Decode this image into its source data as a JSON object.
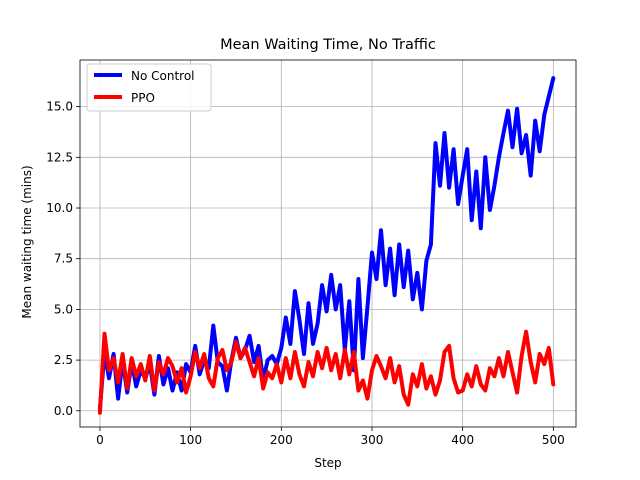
{
  "chart_data": {
    "type": "line",
    "title": "Mean Waiting Time, No Traffic",
    "xlabel": "Step",
    "ylabel": "Mean waiting time (mins)",
    "xlim": [
      -22,
      525
    ],
    "ylim": [
      -0.8,
      17.3
    ],
    "xticks": [
      0,
      100,
      200,
      300,
      400,
      500
    ],
    "yticks": [
      0.0,
      2.5,
      5.0,
      7.5,
      10.0,
      12.5,
      15.0
    ],
    "ytick_labels": [
      "0.0",
      "2.5",
      "5.0",
      "7.5",
      "10.0",
      "12.5",
      "15.0"
    ],
    "grid": true,
    "legend_position": "top-left",
    "series": [
      {
        "name": "No Control",
        "color": "#0000ff",
        "x": [
          0,
          5,
          10,
          15,
          20,
          25,
          30,
          35,
          40,
          45,
          50,
          55,
          60,
          65,
          70,
          75,
          80,
          85,
          90,
          95,
          100,
          105,
          110,
          115,
          120,
          125,
          130,
          135,
          140,
          145,
          150,
          155,
          160,
          165,
          170,
          175,
          180,
          185,
          190,
          195,
          200,
          205,
          210,
          215,
          220,
          225,
          230,
          235,
          240,
          245,
          250,
          255,
          260,
          265,
          270,
          275,
          280,
          285,
          290,
          295,
          300,
          305,
          310,
          315,
          320,
          325,
          330,
          335,
          340,
          345,
          350,
          355,
          360,
          365,
          370,
          375,
          380,
          385,
          390,
          395,
          400,
          405,
          410,
          415,
          420,
          425,
          430,
          435,
          440,
          445,
          450,
          455,
          460,
          465,
          470,
          475,
          480,
          485,
          490,
          495,
          500
        ],
        "values": [
          0.1,
          2.9,
          1.6,
          2.8,
          0.6,
          2.5,
          0.9,
          2.4,
          1.2,
          2.0,
          1.6,
          2.3,
          0.8,
          2.7,
          1.3,
          2.1,
          1.0,
          1.9,
          1.0,
          2.3,
          1.9,
          3.2,
          1.8,
          2.5,
          2.1,
          4.2,
          2.4,
          2.2,
          1.0,
          2.5,
          3.6,
          2.6,
          3.0,
          3.7,
          2.4,
          3.2,
          1.5,
          2.5,
          2.7,
          2.3,
          3.1,
          4.6,
          3.3,
          5.9,
          4.5,
          2.8,
          5.3,
          3.3,
          4.3,
          6.2,
          4.9,
          6.7,
          5.0,
          6.2,
          3.0,
          5.4,
          2.0,
          6.5,
          2.6,
          5.1,
          7.8,
          6.5,
          8.9,
          6.2,
          8.0,
          5.7,
          8.2,
          6.1,
          7.9,
          5.5,
          6.8,
          5.0,
          7.4,
          8.2,
          13.2,
          11.1,
          13.7,
          11.0,
          12.9,
          10.2,
          11.6,
          12.9,
          9.4,
          11.8,
          9.0,
          12.5,
          9.9,
          11.1,
          12.5,
          13.7,
          14.8,
          13.0,
          14.9,
          12.7,
          13.6,
          11.6,
          14.3,
          12.8,
          14.6,
          15.5,
          16.4
        ]
      },
      {
        "name": "PPO",
        "color": "#ff0000",
        "x": [
          0,
          5,
          10,
          15,
          20,
          25,
          30,
          35,
          40,
          45,
          50,
          55,
          60,
          65,
          70,
          75,
          80,
          85,
          90,
          95,
          100,
          105,
          110,
          115,
          120,
          125,
          130,
          135,
          140,
          145,
          150,
          155,
          160,
          165,
          170,
          175,
          180,
          185,
          190,
          195,
          200,
          205,
          210,
          215,
          220,
          225,
          230,
          235,
          240,
          245,
          250,
          255,
          260,
          265,
          270,
          275,
          280,
          285,
          290,
          295,
          300,
          305,
          310,
          315,
          320,
          325,
          330,
          335,
          340,
          345,
          350,
          355,
          360,
          365,
          370,
          375,
          380,
          385,
          390,
          395,
          400,
          405,
          410,
          415,
          420,
          425,
          430,
          435,
          440,
          445,
          450,
          455,
          460,
          465,
          470,
          475,
          480,
          485,
          490,
          495,
          500
        ],
        "values": [
          -0.1,
          3.8,
          2.0,
          2.6,
          1.4,
          2.8,
          1.1,
          2.6,
          1.7,
          2.3,
          1.5,
          2.7,
          1.0,
          2.4,
          1.8,
          2.6,
          2.2,
          1.4,
          2.1,
          0.9,
          1.7,
          2.9,
          2.1,
          2.8,
          1.6,
          1.2,
          2.6,
          3.0,
          2.0,
          2.4,
          3.4,
          2.6,
          3.1,
          2.4,
          1.7,
          2.6,
          1.1,
          1.9,
          1.6,
          2.3,
          1.4,
          2.6,
          1.6,
          2.9,
          1.8,
          1.2,
          2.4,
          1.7,
          2.9,
          2.1,
          3.1,
          2.0,
          2.8,
          1.6,
          3.0,
          1.8,
          2.9,
          1.0,
          1.5,
          0.6,
          2.0,
          2.7,
          2.2,
          1.6,
          2.6,
          1.4,
          2.2,
          0.8,
          0.3,
          1.8,
          1.2,
          2.3,
          1.1,
          1.7,
          0.8,
          1.5,
          2.9,
          3.2,
          1.6,
          0.9,
          1.0,
          1.8,
          1.2,
          2.2,
          1.3,
          1.0,
          2.1,
          1.7,
          2.6,
          1.7,
          2.9,
          1.9,
          0.9,
          2.7,
          3.9,
          2.4,
          1.4,
          2.8,
          2.3,
          3.1,
          1.3
        ]
      }
    ]
  }
}
